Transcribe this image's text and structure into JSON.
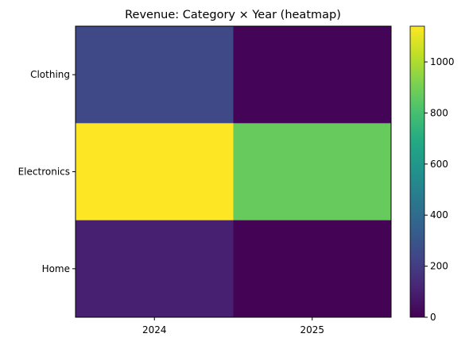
{
  "chart_data": {
    "type": "heatmap",
    "title": "Revenue: Category × Year (heatmap)",
    "xlabel": "",
    "ylabel": "",
    "x": [
      "2024",
      "2025"
    ],
    "y": [
      "Clothing",
      "Electronics",
      "Home"
    ],
    "values": [
      [
        250,
        10
      ],
      [
        1140,
        870
      ],
      [
        100,
        5
      ]
    ],
    "colorbar": {
      "colormap": "viridis",
      "range": [
        0,
        1140
      ],
      "ticks": [
        0,
        200,
        400,
        600,
        800,
        1000
      ]
    },
    "grid": false
  }
}
